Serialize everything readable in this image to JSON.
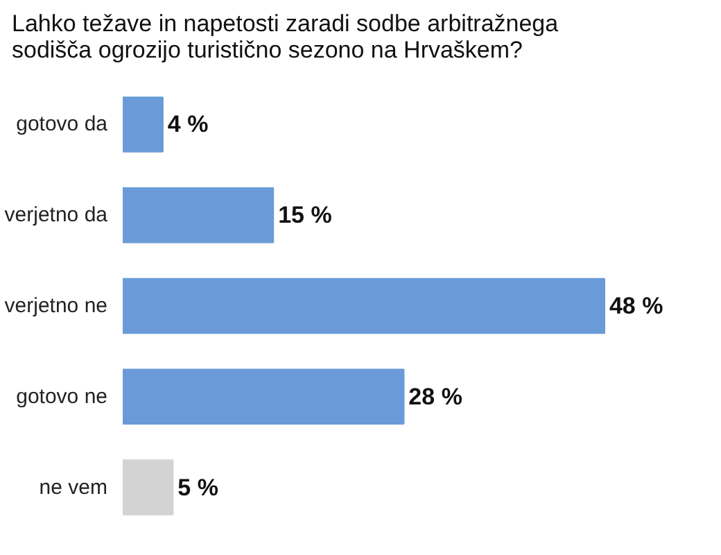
{
  "chart_data": {
    "type": "bar",
    "orientation": "horizontal",
    "title": "Lahko težave in napetosti zaradi sodbe arbitražnega sodišča ogrozijo turistično sezono na Hrvaškem?",
    "categories": [
      "gotovo da",
      "verjetno da",
      "verjetno ne",
      "gotovo ne",
      "ne vem"
    ],
    "values": [
      4,
      15,
      48,
      28,
      5
    ],
    "colors": [
      "#6a9bd8",
      "#6a9bd8",
      "#6a9bd8",
      "#6a9bd8",
      "#d3d3d3"
    ],
    "value_labels": [
      "4 %",
      "15 %",
      "48 %",
      "28 %",
      "5 %"
    ],
    "grid": false
  }
}
